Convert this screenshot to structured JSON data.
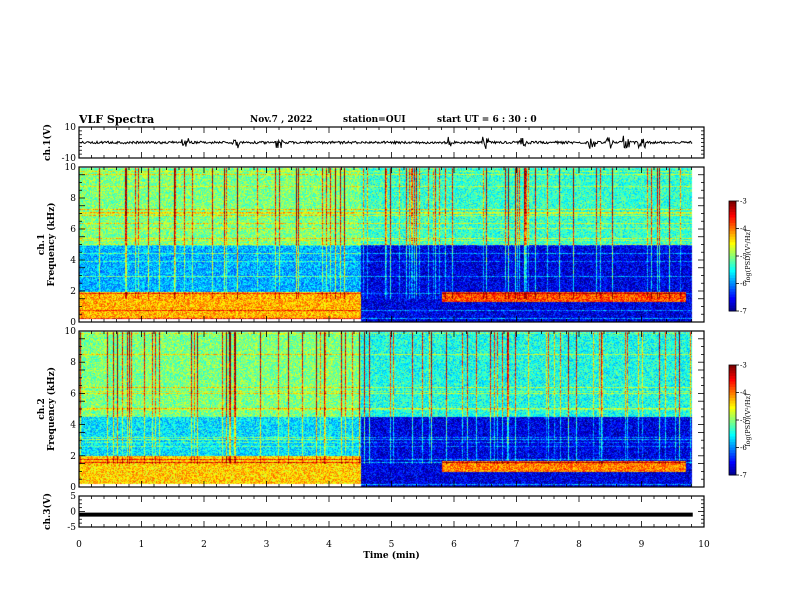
{
  "header": {
    "title": "VLF Spectra",
    "date": "Nov.7  , 2022",
    "station": "station=OUI",
    "start_ut": "start  UT =  6  : 30 : 0"
  },
  "chart_data": [
    {
      "type": "line",
      "panel": "ch1-waveform",
      "ylabel": "ch.1(V)",
      "ylim": [
        -10,
        10
      ],
      "yticks": [
        "10",
        "-10"
      ],
      "xlim": [
        0,
        10
      ],
      "series": [
        {
          "values": [
            0,
            0
          ]
        }
      ],
      "bursts_min": [
        1.7,
        2.5,
        3.2,
        5.9,
        6.5,
        7.1,
        8.2,
        8.5,
        8.75,
        9.0
      ]
    },
    {
      "type": "heatmap",
      "panel": "ch1-spectrogram",
      "ylabel": "ch.1\nFrequency  (kHz)",
      "ylim": [
        0,
        10
      ],
      "yticks": [
        "0",
        "2",
        "4",
        "6",
        "8",
        "10"
      ],
      "xlim": [
        0,
        10
      ],
      "colorbar": {
        "label": "log(PSD)(V²/Hz)",
        "range": [
          -7,
          -3
        ],
        "ticks": [
          "-3",
          "-4",
          "-5",
          "-6",
          "-7"
        ]
      },
      "regions": [
        {
          "t": [
            0,
            4.5
          ],
          "f": [
            0.2,
            2.0
          ],
          "level": -4.2
        },
        {
          "t": [
            0,
            4.5
          ],
          "f": [
            2.0,
            5.0
          ],
          "level": -5.8
        },
        {
          "t": [
            0,
            4.5
          ],
          "f": [
            5.0,
            10
          ],
          "level": -5.0
        },
        {
          "t": [
            4.5,
            9.8
          ],
          "f": [
            0,
            5.0
          ],
          "level": -6.6
        },
        {
          "t": [
            5.8,
            9.7
          ],
          "f": [
            1.3,
            2.0
          ],
          "level": -3.8
        },
        {
          "t": [
            4.5,
            9.8
          ],
          "f": [
            5.0,
            10
          ],
          "level": -5.3
        }
      ]
    },
    {
      "type": "heatmap",
      "panel": "ch2-spectrogram",
      "ylabel": "ch.2\nFrequency  (kHz)",
      "ylim": [
        0,
        10
      ],
      "yticks": [
        "0",
        "2",
        "4",
        "6",
        "8",
        "10"
      ],
      "xlim": [
        0,
        10
      ],
      "colorbar": {
        "label": "log(PSD)(V²/Hz)",
        "range": [
          -7,
          -3
        ],
        "ticks": [
          "-3",
          "-4",
          "-5",
          "-6",
          "-7"
        ]
      },
      "regions": [
        {
          "t": [
            0,
            4.5
          ],
          "f": [
            0.2,
            2.0
          ],
          "level": -4.3
        },
        {
          "t": [
            0,
            4.5
          ],
          "f": [
            2.0,
            4.5
          ],
          "level": -5.6
        },
        {
          "t": [
            0,
            4.5
          ],
          "f": [
            4.5,
            10
          ],
          "level": -5.0
        },
        {
          "t": [
            4.5,
            9.8
          ],
          "f": [
            0,
            4.5
          ],
          "level": -6.6
        },
        {
          "t": [
            5.8,
            9.7
          ],
          "f": [
            1.0,
            1.7
          ],
          "level": -4.0
        },
        {
          "t": [
            4.5,
            9.8
          ],
          "f": [
            4.5,
            10
          ],
          "level": -5.4
        }
      ]
    },
    {
      "type": "line",
      "panel": "ch3-waveform",
      "ylabel": "ch.3(V)",
      "ylim": [
        -5,
        5
      ],
      "yticks": [
        "5",
        "0",
        "-5"
      ],
      "xlim": [
        0,
        10
      ],
      "series": [
        {
          "values": [
            -1,
            -1
          ]
        }
      ]
    }
  ],
  "xaxis": {
    "label": "Time  (min)",
    "ticks": [
      "0",
      "1",
      "2",
      "3",
      "4",
      "5",
      "6",
      "7",
      "8",
      "9",
      "10"
    ]
  }
}
